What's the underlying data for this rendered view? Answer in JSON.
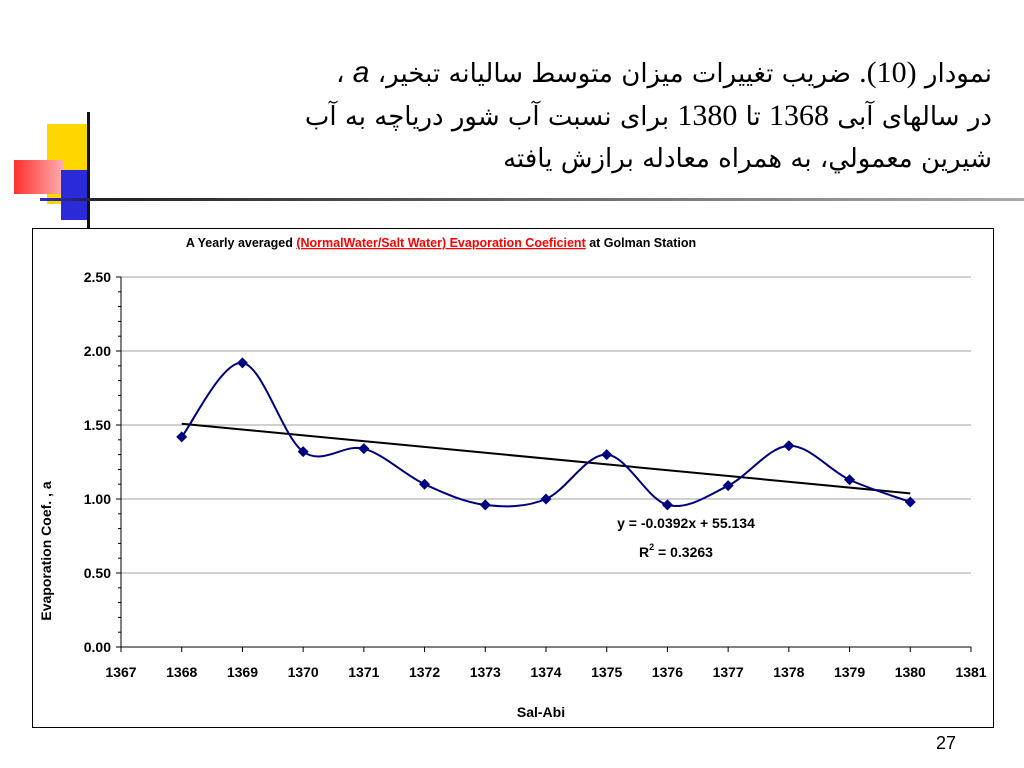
{
  "heading": {
    "line1_a": "نمودار ",
    "line1_num": "(10).",
    "line1_b": "  ضریب تغییرات میزان متوسط سالیانه تبخیر، ",
    "line1_sym": "a",
    "line1_c": " ،",
    "line2_a": "در سالهای آبی ",
    "line2_n1": "1368",
    "line2_b": " تا ",
    "line2_n2": "1380",
    "line2_c": " برای نسبت آب شور دریاچه به آب",
    "line3": "شیرین معمولي، به همراه معادله برازش یافته"
  },
  "page_number": "27",
  "colors": {
    "series": "#000080",
    "trendline": "#000000",
    "title_highlight": "#ff0000",
    "deco_yellow": "#ffd700",
    "deco_red": "#ff3030",
    "deco_blue": "#2a2ad8"
  },
  "chart_data": {
    "type": "line",
    "title_prefix": "A Yearly averaged  ",
    "title_highlight": "(NormalWater/Salt Water) Evaporation Coeficient",
    "title_suffix": " at Golman Station",
    "xlabel": "Sal-Abi",
    "ylabel": "Evaporation Coef. , a",
    "xlim": [
      1367,
      1381
    ],
    "ylim": [
      0,
      2.5
    ],
    "x_ticks": [
      "1367",
      "1368",
      "1369",
      "1370",
      "1371",
      "1372",
      "1373",
      "1374",
      "1375",
      "1376",
      "1377",
      "1378",
      "1379",
      "1380",
      "1381"
    ],
    "y_ticks": [
      "0.00",
      "0.50",
      "1.00",
      "1.50",
      "2.00",
      "2.50"
    ],
    "gridlines": "horizontal",
    "legend": "none",
    "series": [
      {
        "x": [
          1368,
          1369,
          1370,
          1371,
          1372,
          1373,
          1374,
          1375,
          1376,
          1377,
          1378,
          1379,
          1380
        ],
        "values": [
          1.42,
          1.92,
          1.32,
          1.34,
          1.1,
          0.96,
          1.0,
          1.3,
          0.96,
          1.09,
          1.36,
          1.13,
          0.98
        ],
        "marker": "diamond",
        "smooth": true
      }
    ],
    "trendline": {
      "slope": -0.0392,
      "intercept": 55.134,
      "x_range": [
        1368,
        1380
      ],
      "equation": "y = -0.0392x + 55.134",
      "r2_prefix": "R",
      "r2_sup": "2",
      "r2_value": " = 0.3263"
    }
  }
}
